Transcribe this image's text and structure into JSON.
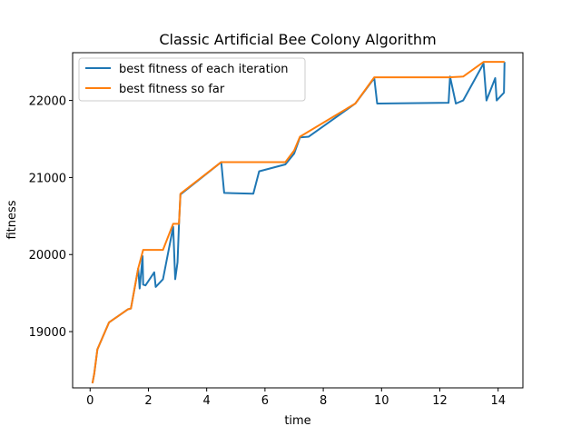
{
  "chart_data": {
    "type": "line",
    "title": "Classic Artificial Bee Colony Algorithm",
    "xlabel": "time",
    "ylabel": "fitness",
    "xlim": [
      -0.6,
      14.85
    ],
    "ylim": [
      18270,
      22620
    ],
    "xticks": [
      0,
      2,
      4,
      6,
      8,
      10,
      12,
      14
    ],
    "yticks": [
      19000,
      20000,
      21000,
      22000
    ],
    "grid": false,
    "legend_position": "top-left",
    "series": [
      {
        "name": "best fitness of each iteration",
        "color": "#1f77b4",
        "x": [
          0.08,
          0.14,
          0.25,
          0.65,
          1.3,
          1.4,
          1.65,
          1.7,
          1.8,
          1.82,
          1.9,
          2.2,
          2.25,
          2.5,
          2.85,
          2.92,
          3.0,
          3.05,
          3.1,
          4.5,
          4.6,
          5.6,
          5.8,
          6.7,
          7.0,
          7.2,
          7.5,
          9.1,
          9.75,
          9.85,
          12.3,
          12.35,
          12.55,
          12.8,
          13.5,
          13.6,
          13.9,
          13.95,
          14.2,
          14.22
        ],
        "y": [
          18330,
          18450,
          18770,
          19120,
          19290,
          19300,
          19820,
          19560,
          19980,
          19610,
          19600,
          19770,
          19580,
          19680,
          20360,
          19680,
          19900,
          20400,
          20780,
          21200,
          20800,
          20790,
          21080,
          21170,
          21310,
          21520,
          21530,
          21960,
          22290,
          21960,
          21970,
          22310,
          21960,
          22000,
          22480,
          22000,
          22290,
          22000,
          22100,
          22500
        ]
      },
      {
        "name": "best fitness so far",
        "color": "#ff7f0e",
        "x": [
          0.08,
          0.14,
          0.25,
          0.65,
          1.3,
          1.4,
          1.65,
          1.82,
          2.5,
          2.85,
          3.05,
          3.1,
          4.5,
          6.7,
          7.0,
          7.2,
          9.1,
          9.75,
          12.3,
          12.8,
          13.5,
          14.22
        ],
        "y": [
          18330,
          18450,
          18770,
          19120,
          19290,
          19300,
          19820,
          20060,
          20060,
          20400,
          20400,
          20790,
          21200,
          21200,
          21350,
          21530,
          21960,
          22300,
          22300,
          22310,
          22500,
          22500
        ]
      }
    ]
  }
}
